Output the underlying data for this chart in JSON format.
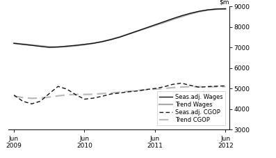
{
  "ylim": [
    3000,
    9000
  ],
  "yticks": [
    3000,
    4000,
    5000,
    6000,
    7000,
    8000,
    9000
  ],
  "background_color": "#ffffff",
  "seas_wages": [
    7200,
    7150,
    7100,
    7050,
    7000,
    7020,
    7060,
    7100,
    7150,
    7200,
    7280,
    7380,
    7500,
    7650,
    7800,
    7950,
    8100,
    8250,
    8400,
    8540,
    8660,
    8760,
    8830,
    8870,
    8880
  ],
  "trend_wages": [
    7200,
    7160,
    7120,
    7070,
    7030,
    7020,
    7040,
    7080,
    7130,
    7200,
    7280,
    7390,
    7510,
    7650,
    7790,
    7930,
    8070,
    8210,
    8360,
    8500,
    8630,
    8740,
    8820,
    8860,
    8880
  ],
  "seas_cogop": [
    4680,
    4380,
    4250,
    4380,
    4750,
    5100,
    4970,
    4700,
    4480,
    4530,
    4620,
    4730,
    4780,
    4840,
    4880,
    4950,
    5000,
    5080,
    5200,
    5260,
    5150,
    5060,
    5090,
    5110,
    5130
  ],
  "trend_cogop": [
    4620,
    4560,
    4520,
    4540,
    4580,
    4640,
    4690,
    4710,
    4710,
    4720,
    4750,
    4780,
    4820,
    4860,
    4900,
    4940,
    4970,
    5000,
    5040,
    5070,
    5090,
    5085,
    5080,
    5085,
    5090
  ],
  "x_start": 2009.417,
  "x_end": 2012.417,
  "xtick_positions": [
    2009.417,
    2010.417,
    2011.417,
    2012.417
  ],
  "xtick_labels": [
    "Jun\n2009",
    "Jun\n2010",
    "Jun\n2011",
    "Jun\n2012"
  ],
  "seas_wages_color": "#111111",
  "trend_wages_color": "#aaaaaa",
  "seas_cogop_color": "#111111",
  "trend_cogop_color": "#bbbbbb",
  "legend_labels": [
    "Seas.adj. Wages",
    "Trend Wages",
    "Seas.adj. CGOP",
    "Trend CGOP"
  ],
  "legend_fontsize": 6.0,
  "tick_fontsize": 6.5,
  "seas_lw": 1.0,
  "trend_lw": 1.6
}
